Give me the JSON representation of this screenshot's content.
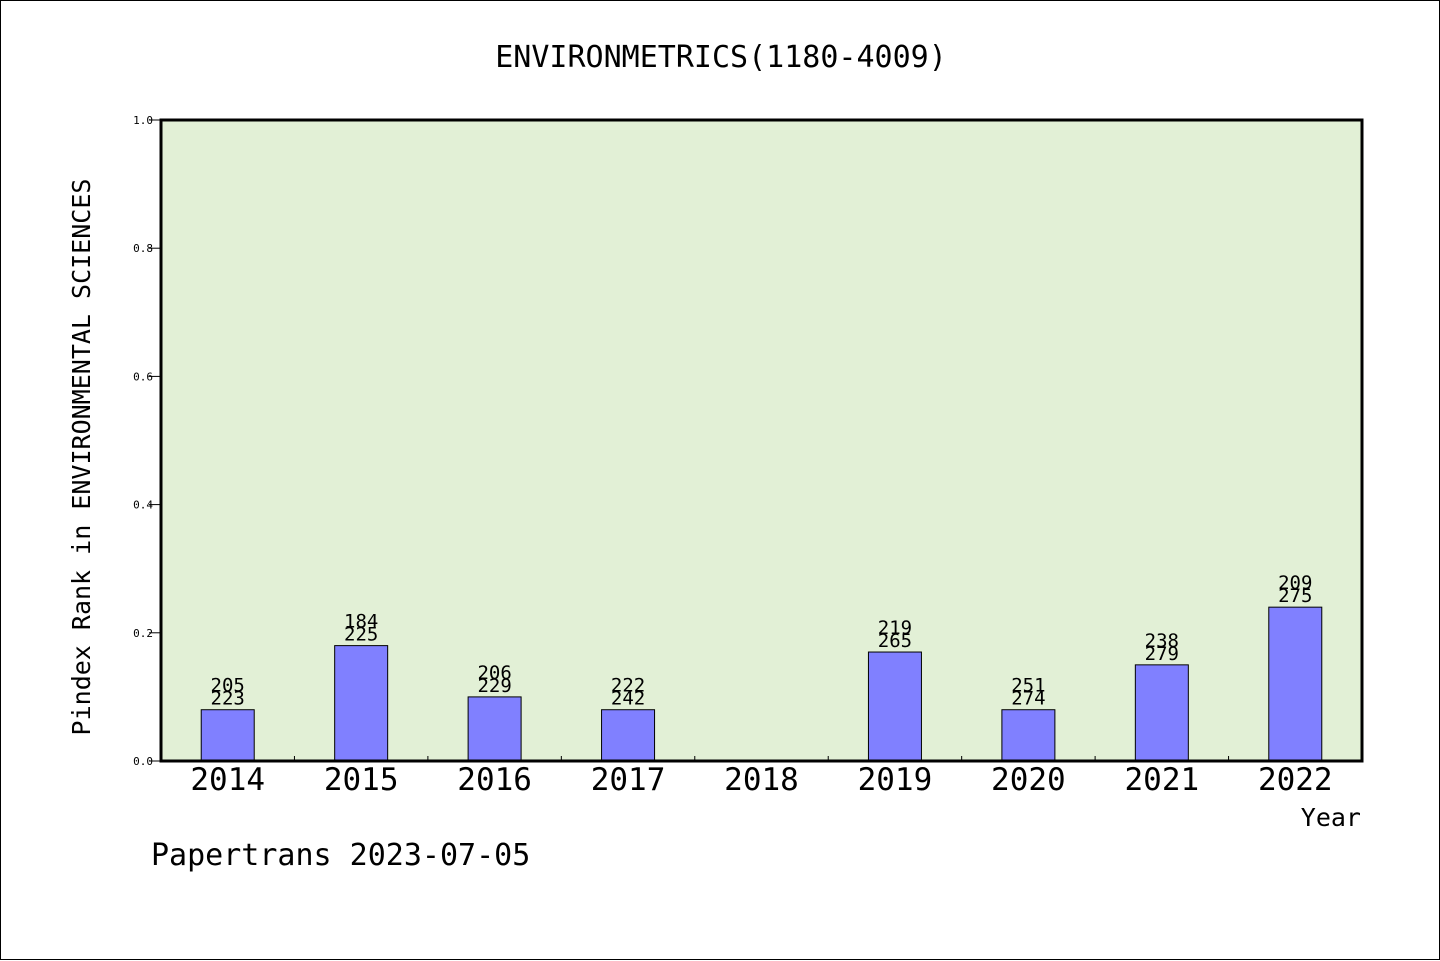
{
  "chart_data": {
    "type": "bar",
    "title": "ENVIRONMETRICS(1180-4009)",
    "xlabel": "Year",
    "ylabel": "Pindex Rank in ENVIRONMENTAL SCIENCES",
    "ylim": [
      0.0,
      1.0
    ],
    "yticks": [
      "0.0",
      "0.2",
      "0.4",
      "0.6",
      "0.8",
      "1.0"
    ],
    "categories": [
      "2014",
      "2015",
      "2016",
      "2017",
      "2018",
      "2019",
      "2020",
      "2021",
      "2022"
    ],
    "values": [
      0.08,
      0.18,
      0.1,
      0.08,
      null,
      0.17,
      0.08,
      0.15,
      0.24
    ],
    "labels_top": [
      "205",
      "184",
      "206",
      "222",
      "",
      "219",
      "251",
      "238",
      "209"
    ],
    "labels_bottom": [
      "223",
      "225",
      "229",
      "242",
      "",
      "265",
      "274",
      "279",
      "275"
    ],
    "grid": false,
    "colors": {
      "plot_background": "#e2f0d6",
      "bar_fill": "#8080ff",
      "bar_stroke": "#000000"
    }
  },
  "footer": "Papertrans 2023-07-05"
}
